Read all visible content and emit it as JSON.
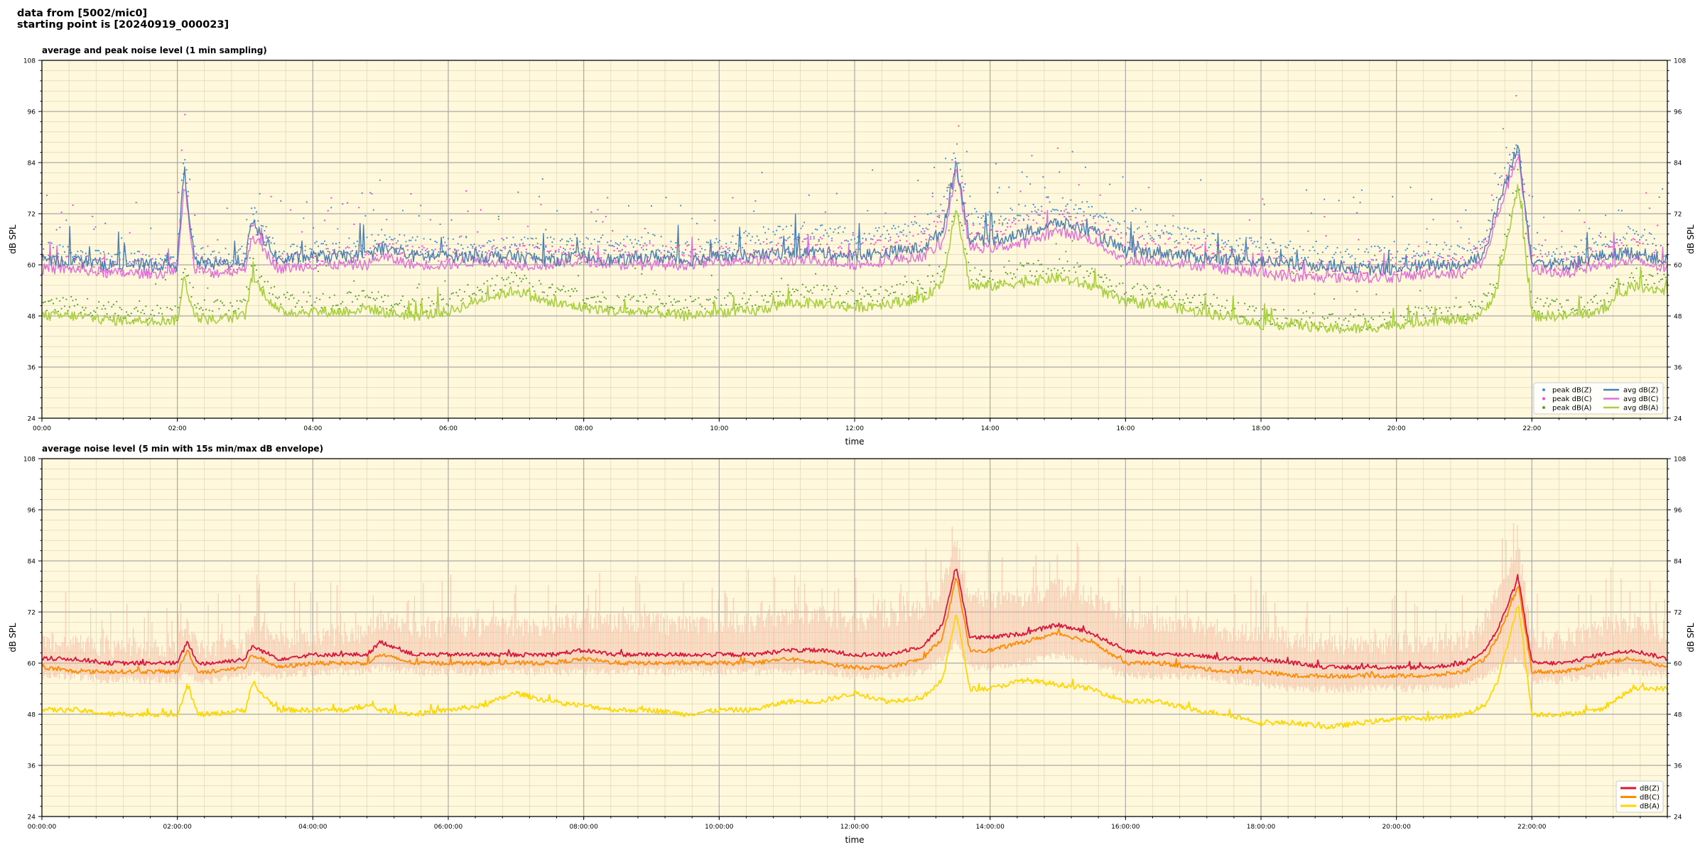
{
  "header": {
    "line1": "data from [5002/mic0]",
    "line2": "starting point is [20240919_000023]"
  },
  "colors": {
    "background": "#fff8dc",
    "peakZ": "#3a8fd8",
    "peakC": "#ff3fd0",
    "peakA": "#55a02a",
    "avgZ": "#4a7fb0",
    "avgC": "#e070d8",
    "avgA": "#a8d040",
    "dbZ": "#dc143c",
    "dbC": "#ff8c00",
    "dbA": "#ffd700",
    "envelope": "#f4b6a0"
  },
  "chart_data": [
    {
      "type": "line",
      "title": "average and peak noise level (1 min sampling)",
      "xlabel": "time",
      "ylabel": "dB SPL",
      "xlim": [
        0,
        24
      ],
      "ylim": [
        24,
        108
      ],
      "yticks": [
        "24",
        "36",
        "48",
        "60",
        "72",
        "84",
        "96",
        "108"
      ],
      "xticks": [
        "00:00",
        "02:00",
        "04:00",
        "06:00",
        "08:00",
        "10:00",
        "12:00",
        "14:00",
        "16:00",
        "18:00",
        "20:00",
        "22:00"
      ],
      "grid": true,
      "legend_position": "lower-right",
      "legend": [
        "peak dB(Z)",
        "peak dB(C)",
        "peak dB(A)",
        "avg dB(Z)",
        "avg dB(C)",
        "avg dB(A)"
      ],
      "x": [
        0,
        0.5,
        1,
        1.5,
        2,
        2.1,
        2.25,
        2.5,
        3,
        3.1,
        3.5,
        4,
        4.5,
        4.8,
        5,
        5.5,
        6,
        6.5,
        7,
        7.5,
        8,
        8.5,
        9,
        9.5,
        10,
        10.5,
        11,
        11.5,
        12,
        12.5,
        13,
        13.3,
        13.5,
        13.7,
        14,
        14.5,
        15,
        15.5,
        16,
        16.5,
        17,
        17.5,
        18,
        18.5,
        19,
        19.5,
        20,
        20.5,
        21,
        21.3,
        21.5,
        21.8,
        22,
        22.5,
        23,
        23.5,
        24
      ],
      "series": [
        {
          "name": "avg dB(Z)",
          "kind": "line",
          "values": [
            61,
            61,
            60,
            60,
            60,
            83,
            61,
            60,
            61,
            70,
            61,
            62,
            62,
            62,
            64,
            62,
            62,
            62,
            62,
            61,
            62,
            61,
            62,
            61,
            62,
            62,
            63,
            63,
            62,
            63,
            64,
            68,
            84,
            66,
            66,
            67,
            70,
            68,
            63,
            63,
            62,
            61,
            61,
            60,
            60,
            59,
            59,
            60,
            60,
            63,
            74,
            88,
            61,
            60,
            62,
            63,
            61
          ]
        },
        {
          "name": "avg dB(C)",
          "kind": "line",
          "values": [
            59,
            59,
            58,
            58,
            58,
            80,
            59,
            58,
            59,
            67,
            59,
            60,
            60,
            60,
            62,
            60,
            60,
            61,
            60,
            60,
            61,
            60,
            60,
            60,
            61,
            61,
            61,
            61,
            60,
            61,
            62,
            65,
            82,
            64,
            64,
            65,
            68,
            66,
            61,
            61,
            60,
            59,
            58,
            57,
            57,
            57,
            57,
            58,
            58,
            61,
            72,
            86,
            59,
            58,
            60,
            61,
            59
          ]
        },
        {
          "name": "avg dB(A)",
          "kind": "line",
          "values": [
            48,
            48,
            47,
            47,
            47,
            57,
            48,
            47,
            48,
            57,
            49,
            49,
            49,
            50,
            49,
            48,
            49,
            52,
            54,
            51,
            50,
            49,
            49,
            48,
            49,
            49,
            51,
            51,
            50,
            51,
            52,
            56,
            74,
            55,
            55,
            56,
            57,
            55,
            51,
            51,
            49,
            48,
            46,
            46,
            45,
            45,
            46,
            47,
            47,
            49,
            55,
            79,
            48,
            48,
            49,
            55,
            54
          ]
        },
        {
          "name": "peak dB(Z)",
          "kind": "scatter",
          "values": [
            63,
            62,
            61,
            61,
            61,
            88,
            62,
            61,
            62,
            72,
            62,
            63,
            64,
            64,
            66,
            64,
            64,
            64,
            64,
            64,
            65,
            64,
            65,
            63,
            64,
            66,
            67,
            67,
            66,
            67,
            68,
            73,
            87,
            71,
            70,
            72,
            74,
            72,
            68,
            67,
            66,
            64,
            64,
            62,
            62,
            62,
            62,
            63,
            63,
            66,
            77,
            88,
            62,
            62,
            65,
            67,
            63
          ]
        },
        {
          "name": "peak dB(C)",
          "kind": "scatter",
          "values": [
            60,
            60,
            59,
            59,
            59,
            84,
            60,
            59,
            60,
            69,
            60,
            61,
            62,
            62,
            63,
            62,
            62,
            62,
            62,
            62,
            62,
            62,
            63,
            62,
            62,
            63,
            64,
            64,
            63,
            64,
            65,
            70,
            84,
            68,
            67,
            69,
            71,
            69,
            65,
            64,
            63,
            62,
            60,
            59,
            59,
            59,
            59,
            60,
            60,
            63,
            74,
            87,
            60,
            60,
            62,
            64,
            60
          ]
        },
        {
          "name": "peak dB(A)",
          "kind": "scatter",
          "values": [
            50,
            50,
            49,
            48,
            48,
            60,
            50,
            49,
            50,
            59,
            51,
            51,
            51,
            52,
            51,
            50,
            51,
            54,
            56,
            53,
            52,
            51,
            51,
            50,
            51,
            51,
            53,
            53,
            52,
            53,
            54,
            58,
            76,
            57,
            57,
            58,
            59,
            57,
            53,
            53,
            51,
            50,
            47,
            47,
            46,
            46,
            47,
            48,
            48,
            51,
            57,
            81,
            50,
            50,
            51,
            57,
            55
          ]
        }
      ]
    },
    {
      "type": "line",
      "title": "average noise level (5 min with 15s min/max dB envelope)",
      "xlabel": "time",
      "ylabel": "dB SPL",
      "xlim": [
        0,
        24
      ],
      "ylim": [
        24,
        108
      ],
      "yticks": [
        "24",
        "36",
        "48",
        "60",
        "72",
        "84",
        "96",
        "108"
      ],
      "xticks": [
        "00:00:00",
        "02:00:00",
        "04:00:00",
        "06:00:00",
        "08:00:00",
        "10:00:00",
        "12:00:00",
        "14:00:00",
        "16:00:00",
        "18:00:00",
        "20:00:00",
        "22:00:00"
      ],
      "grid": true,
      "legend_position": "lower-right",
      "legend": [
        "dB(Z)",
        "dB(C)",
        "dB(A)"
      ],
      "x": [
        0,
        0.5,
        1,
        1.5,
        2,
        2.15,
        2.3,
        2.5,
        3,
        3.1,
        3.5,
        4,
        4.5,
        4.8,
        5,
        5.5,
        6,
        6.5,
        7,
        7.5,
        8,
        8.5,
        9,
        9.5,
        10,
        10.5,
        11,
        11.5,
        12,
        12.5,
        13,
        13.3,
        13.5,
        13.7,
        14,
        14.5,
        15,
        15.5,
        16,
        16.5,
        17,
        17.5,
        18,
        18.5,
        19,
        19.5,
        20,
        20.5,
        21,
        21.3,
        21.5,
        21.8,
        22,
        22.5,
        23,
        23.5,
        24
      ],
      "series": [
        {
          "name": "dB(Z)",
          "values": [
            61,
            61,
            60,
            60,
            60,
            65,
            60,
            60,
            61,
            64,
            61,
            62,
            62,
            62,
            65,
            62,
            62,
            62,
            62,
            62,
            63,
            62,
            62,
            62,
            62,
            62,
            63,
            63,
            62,
            62,
            64,
            69,
            83,
            66,
            66,
            67,
            69,
            67,
            63,
            62,
            62,
            61,
            61,
            60,
            59,
            59,
            59,
            59,
            60,
            63,
            68,
            80,
            60,
            60,
            62,
            63,
            61
          ]
        },
        {
          "name": "dB(C)",
          "values": [
            59,
            58,
            58,
            58,
            58,
            63,
            58,
            58,
            59,
            62,
            59,
            60,
            60,
            60,
            62,
            60,
            60,
            60,
            60,
            60,
            61,
            60,
            60,
            60,
            60,
            60,
            61,
            60,
            59,
            59,
            61,
            66,
            80,
            63,
            63,
            65,
            67,
            65,
            60,
            60,
            59,
            58,
            58,
            57,
            57,
            57,
            57,
            57,
            58,
            61,
            66,
            78,
            58,
            58,
            60,
            61,
            59
          ]
        },
        {
          "name": "dB(A)",
          "values": [
            49,
            49,
            48,
            48,
            48,
            55,
            48,
            48,
            49,
            55,
            49,
            49,
            49,
            50,
            49,
            48,
            49,
            50,
            53,
            51,
            50,
            49,
            49,
            48,
            49,
            49,
            51,
            51,
            53,
            51,
            52,
            56,
            72,
            54,
            54,
            56,
            55,
            54,
            51,
            51,
            49,
            48,
            46,
            46,
            45,
            46,
            47,
            47,
            48,
            50,
            56,
            74,
            48,
            48,
            49,
            54,
            54
          ]
        },
        {
          "name": "envelope max",
          "values": [
            68,
            67,
            66,
            66,
            66,
            72,
            66,
            66,
            67,
            72,
            68,
            69,
            69,
            70,
            73,
            70,
            71,
            71,
            71,
            71,
            73,
            72,
            72,
            71,
            72,
            72,
            74,
            74,
            72,
            73,
            75,
            80,
            90,
            77,
            77,
            78,
            80,
            78,
            73,
            72,
            72,
            70,
            70,
            68,
            67,
            67,
            67,
            67,
            68,
            72,
            79,
            90,
            68,
            68,
            71,
            72,
            69
          ]
        },
        {
          "name": "envelope min",
          "values": [
            58,
            58,
            57,
            57,
            57,
            59,
            57,
            57,
            58,
            59,
            58,
            59,
            59,
            59,
            60,
            59,
            59,
            59,
            59,
            59,
            59,
            59,
            59,
            59,
            59,
            59,
            59,
            59,
            58,
            58,
            59,
            62,
            66,
            60,
            60,
            61,
            63,
            61,
            58,
            58,
            58,
            57,
            56,
            55,
            55,
            55,
            55,
            55,
            56,
            58,
            60,
            62,
            57,
            57,
            58,
            59,
            58
          ]
        }
      ]
    }
  ]
}
